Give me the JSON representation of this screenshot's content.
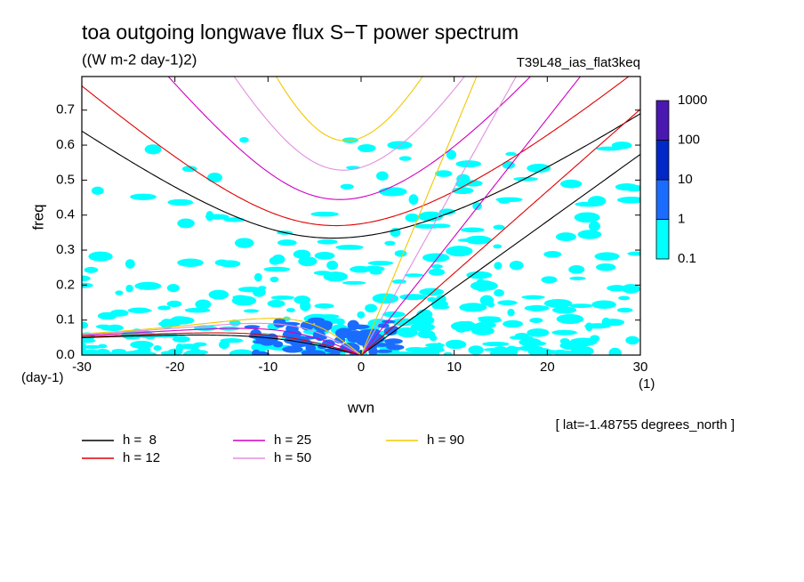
{
  "chart_data": {
    "type": "spectrum",
    "title": "toa outgoing longwave flux S−T power spectrum",
    "subtitle": "((W m-2 day-1)2)",
    "run_label": "T39L48_ias_flat3keq",
    "ylabel": "freq",
    "xlabel": "wvn",
    "y_unit": "(day-1)",
    "x_unit": "(1)",
    "annotation": "[ lat=-1.48755 degrees_north ]",
    "xlim": [
      -30,
      30
    ],
    "xticks": [
      -30,
      -20,
      -10,
      0,
      10,
      20,
      30
    ],
    "ylim": [
      0,
      0.796
    ],
    "yticks": [
      {
        "value": 0,
        "label": "0.0"
      },
      0.1,
      0.2,
      0.3,
      0.4,
      0.5,
      0.6,
      0.7
    ],
    "colorbar": {
      "levels": [
        0.1,
        1,
        10,
        100,
        1000
      ],
      "colors": [
        "#00ffff",
        "#1a6cff",
        "#0028c8",
        "#4a18b0"
      ]
    },
    "series": [
      {
        "name": "h =  8",
        "h": 8,
        "color": "#000000"
      },
      {
        "name": "h = 12",
        "h": 12,
        "color": "#e00000"
      },
      {
        "name": "h = 25",
        "h": 25,
        "color": "#d000c0"
      },
      {
        "name": "h = 50",
        "h": 50,
        "color": "#e090e0"
      },
      {
        "name": "h = 90",
        "h": 90,
        "color": "#f0c800"
      }
    ]
  }
}
